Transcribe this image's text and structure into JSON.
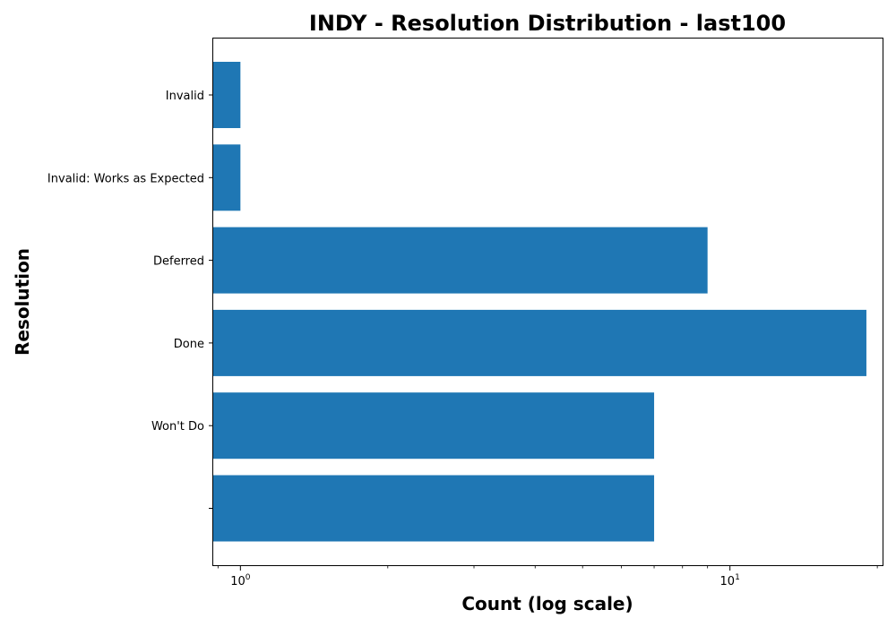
{
  "chart_data": {
    "type": "bar",
    "orientation": "horizontal",
    "title": "INDY - Resolution Distribution - last100",
    "xlabel": "Count (log scale)",
    "ylabel": "Resolution",
    "xscale": "log",
    "xlim": [
      0.88,
      20.5
    ],
    "categories": [
      "Invalid",
      "Invalid: Works as Expected",
      "Deferred",
      "Done",
      "Won't Do",
      ""
    ],
    "values": [
      1,
      1,
      9,
      19,
      7,
      7
    ],
    "x_ticks": [
      {
        "base": "10",
        "exp": "0",
        "value": 1
      },
      {
        "base": "10",
        "exp": "1",
        "value": 10
      }
    ],
    "bar_color": "#1f77b4",
    "grid": false,
    "legend": "none"
  }
}
